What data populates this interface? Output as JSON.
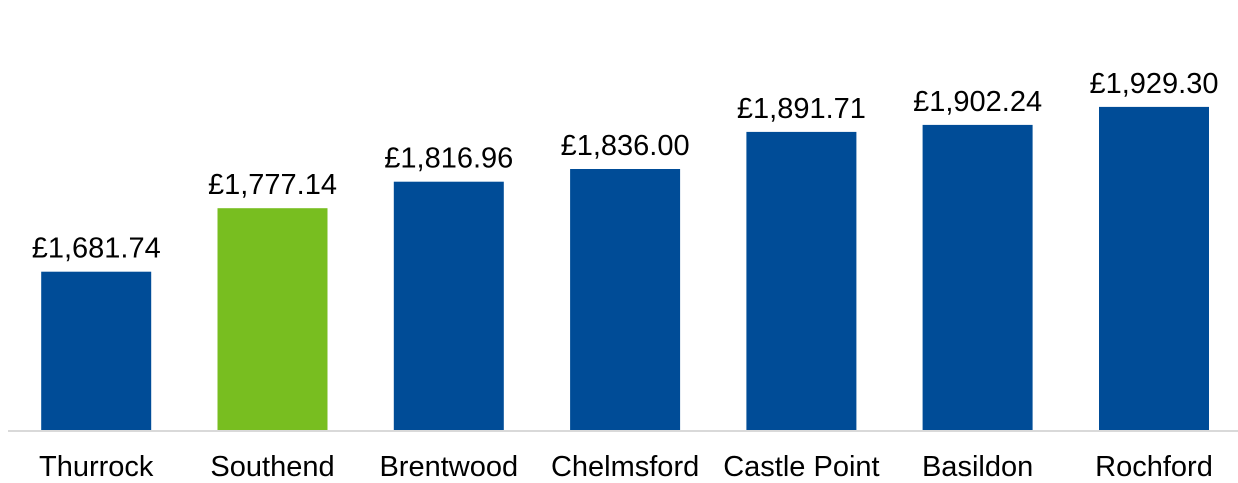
{
  "chart_data": {
    "type": "bar",
    "categories": [
      "Thurrock",
      "Southend",
      "Brentwood",
      "Chelmsford",
      "Castle Point",
      "Basildon",
      "Rochford"
    ],
    "values": [
      1681.74,
      1777.14,
      1816.96,
      1836.0,
      1891.71,
      1902.24,
      1929.3
    ],
    "value_labels": [
      "£1,681.74",
      "£1,777.14",
      "£1,816.96",
      "£1,836.00",
      "£1,891.71",
      "£1,902.24",
      "£1,929.30"
    ],
    "highlight_category": "Southend",
    "colors": {
      "bar": "#004C97",
      "highlight": "#78BE20",
      "axis": "#D9D9D9"
    },
    "title": "",
    "xlabel": "",
    "ylabel": "",
    "grid": false,
    "legend": "none"
  }
}
